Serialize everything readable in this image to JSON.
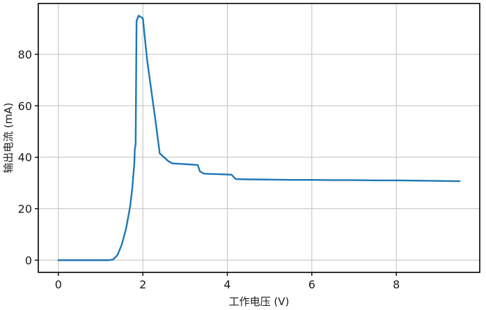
{
  "figure": {
    "background_color": "#ffffff"
  },
  "chart_data": {
    "type": "line",
    "xlabel": "工作电压 (V)",
    "ylabel": "输出电流 (mA)",
    "xlim": [
      -0.475,
      9.975
    ],
    "ylim": [
      -4.75,
      99.75
    ],
    "xticks": [
      0,
      2,
      4,
      6,
      8
    ],
    "yticks": [
      0,
      20,
      40,
      60,
      80
    ],
    "grid": true,
    "legend_position": "none",
    "line_color": "#1f77b4",
    "grid_color": "#c6c6c6",
    "spine_color": "#000000",
    "x": [
      0,
      0.2,
      0.4,
      0.6,
      0.8,
      1.0,
      1.1,
      1.2,
      1.3,
      1.4,
      1.5,
      1.6,
      1.7,
      1.75,
      1.8,
      1.81,
      1.83,
      1.85,
      1.9,
      2.0,
      2.1,
      2.2,
      2.3,
      2.4,
      2.5,
      2.6,
      2.7,
      2.9,
      3.1,
      3.3,
      3.35,
      3.45,
      3.6,
      3.8,
      4.0,
      4.1,
      4.2,
      4.5,
      5.0,
      5.5,
      6.0,
      6.5,
      7.0,
      7.5,
      8.0,
      8.5,
      9.0,
      9.5
    ],
    "y": [
      0,
      0,
      0,
      0,
      0,
      0,
      0,
      0,
      0.3,
      2,
      6,
      12,
      21,
      28,
      38,
      43,
      45,
      93,
      95,
      94,
      78,
      66,
      54,
      41.5,
      40,
      38.5,
      37.6,
      37.4,
      37.2,
      37,
      34.5,
      33.6,
      33.5,
      33.4,
      33.3,
      33.2,
      31.5,
      31.4,
      31.3,
      31.2,
      31.2,
      31.1,
      31.1,
      31.0,
      31.0,
      30.9,
      30.8,
      30.7
    ]
  }
}
